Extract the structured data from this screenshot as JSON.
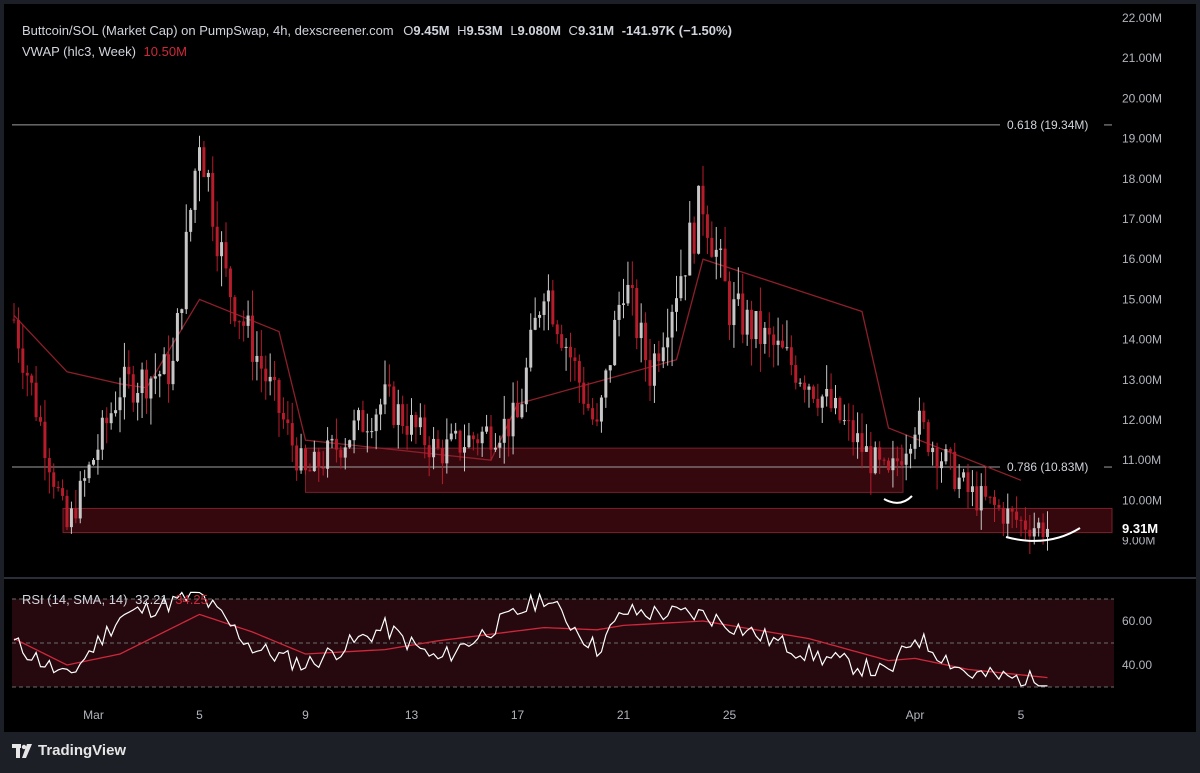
{
  "header": {
    "symbol": "Buttcoin/SOL (Market Cap) on PumpSwap, 4h, dexscreener.com",
    "ohlc": {
      "o_label": "O",
      "o": "9.45M",
      "h_label": "H",
      "h": "9.53M",
      "l_label": "L",
      "l": "9.080M",
      "c_label": "C",
      "c": "9.31M",
      "change": "-141.97K (−1.50%)"
    },
    "vwap_label": "VWAP (hlc3, Week)",
    "vwap_value": "10.50M"
  },
  "rsi_legend": {
    "label": "RSI (14, SMA, 14)",
    "value": "32.21",
    "sma_value": "34.25"
  },
  "brand": {
    "name": "TradingView",
    "icon": "tradingview-logo-icon"
  },
  "colors": {
    "background": "#000000",
    "frame": "#1c1f26",
    "up": "#c7c7c7",
    "down": "#b71c2b",
    "vwap": "#8c1f2a",
    "zone_fill": "#3b0910",
    "zone_stroke": "#7a1f2b",
    "rsi_line": "#ffffff",
    "rsi_sma": "#d0283a",
    "fib_line": "#9e9e9e"
  },
  "chart_data": [
    {
      "type": "candlestick",
      "title": "Buttcoin/SOL (Market Cap) on PumpSwap, 4h, dexscreener.com",
      "ylim": [
        8.8,
        22.0
      ],
      "y_unit": "M",
      "y_ticks": [
        "22.00M",
        "21.00M",
        "20.00M",
        "19.00M",
        "18.00M",
        "17.00M",
        "16.00M",
        "15.00M",
        "14.00M",
        "13.00M",
        "12.00M",
        "11.00M",
        "10.00M",
        "9.00M"
      ],
      "x_ticks": [
        "Mar",
        "5",
        "9",
        "13",
        "17",
        "21",
        "25",
        "Apr",
        "5"
      ],
      "last_price_label": "9.31M",
      "fib_levels": [
        {
          "label": "0.618 (19.34M)",
          "value": 19.34
        },
        {
          "label": "0.786 (10.83M)",
          "value": 10.83
        }
      ],
      "zones": [
        {
          "from": 10.2,
          "to": 11.3
        },
        {
          "from": 9.2,
          "to": 9.8
        }
      ],
      "key_points": [
        {
          "date": "Feb 26",
          "close": 14.5
        },
        {
          "date": "Feb 28",
          "close": 9.3
        },
        {
          "date": "Mar 2",
          "close": 12.8
        },
        {
          "date": "Mar 4",
          "close": 13.3
        },
        {
          "date": "Mar 5",
          "close": 19.2
        },
        {
          "date": "Mar 6",
          "close": 15.5
        },
        {
          "date": "Mar 9",
          "close": 10.6
        },
        {
          "date": "Mar 12",
          "close": 12.5
        },
        {
          "date": "Mar 14",
          "close": 11.2
        },
        {
          "date": "Mar 17",
          "close": 12.0
        },
        {
          "date": "Mar 18",
          "close": 15.5
        },
        {
          "date": "Mar 20",
          "close": 11.7
        },
        {
          "date": "Mar 21",
          "close": 15.5
        },
        {
          "date": "Mar 22",
          "close": 13.2
        },
        {
          "date": "Mar 24",
          "close": 17.5
        },
        {
          "date": "Mar 25",
          "close": 14.8
        },
        {
          "date": "Mar 28",
          "close": 13.0
        },
        {
          "date": "Mar 30",
          "close": 11.3
        },
        {
          "date": "Mar 31",
          "close": 10.5
        },
        {
          "date": "Apr 1",
          "close": 12.0
        },
        {
          "date": "Apr 3",
          "close": 10.2
        },
        {
          "date": "Apr 5",
          "close": 9.45
        },
        {
          "date": "Apr 5 (last)",
          "close": 9.31
        }
      ],
      "vwap_points": [
        {
          "date": "Feb 26",
          "value": 14.6
        },
        {
          "date": "Feb 28",
          "value": 13.2
        },
        {
          "date": "Mar 2",
          "value": 12.9
        },
        {
          "date": "Mar 3",
          "value": 12.8
        },
        {
          "date": "Mar 5",
          "value": 15.0
        },
        {
          "date": "Mar 8",
          "value": 14.2
        },
        {
          "date": "Mar 9",
          "value": 11.5
        },
        {
          "date": "Mar 16",
          "value": 11.0
        },
        {
          "date": "Mar 17",
          "value": 12.4
        },
        {
          "date": "Mar 23",
          "value": 13.5
        },
        {
          "date": "Mar 24",
          "value": 16.0
        },
        {
          "date": "Mar 30",
          "value": 14.7
        },
        {
          "date": "Mar 31",
          "value": 11.8
        },
        {
          "date": "Apr 5",
          "value": 10.5
        }
      ]
    },
    {
      "type": "line",
      "title": "RSI (14, SMA, 14)",
      "ylim": [
        30,
        73
      ],
      "y_ticks": [
        "60.00",
        "40.00"
      ],
      "bands": [
        70,
        50,
        30
      ],
      "key_points": [
        {
          "date": "Feb 26",
          "rsi": 50,
          "sma": 52
        },
        {
          "date": "Feb 28",
          "rsi": 34,
          "sma": 40
        },
        {
          "date": "Mar 2",
          "rsi": 62,
          "sma": 45
        },
        {
          "date": "Mar 5",
          "rsi": 72,
          "sma": 63
        },
        {
          "date": "Mar 7",
          "rsi": 48,
          "sma": 55
        },
        {
          "date": "Mar 9",
          "rsi": 40,
          "sma": 45
        },
        {
          "date": "Mar 12",
          "rsi": 57,
          "sma": 47
        },
        {
          "date": "Mar 14",
          "rsi": 42,
          "sma": 51
        },
        {
          "date": "Mar 18",
          "rsi": 71,
          "sma": 57
        },
        {
          "date": "Mar 20",
          "rsi": 47,
          "sma": 56
        },
        {
          "date": "Mar 21",
          "rsi": 64,
          "sma": 58
        },
        {
          "date": "Mar 24",
          "rsi": 63,
          "sma": 60
        },
        {
          "date": "Mar 28",
          "rsi": 45,
          "sma": 52
        },
        {
          "date": "Mar 31",
          "rsi": 36,
          "sma": 42
        },
        {
          "date": "Apr 1",
          "rsi": 53,
          "sma": 43
        },
        {
          "date": "Apr 3",
          "rsi": 36,
          "sma": 38
        },
        {
          "date": "Apr 5",
          "rsi": 32.21,
          "sma": 34.25
        }
      ]
    }
  ]
}
